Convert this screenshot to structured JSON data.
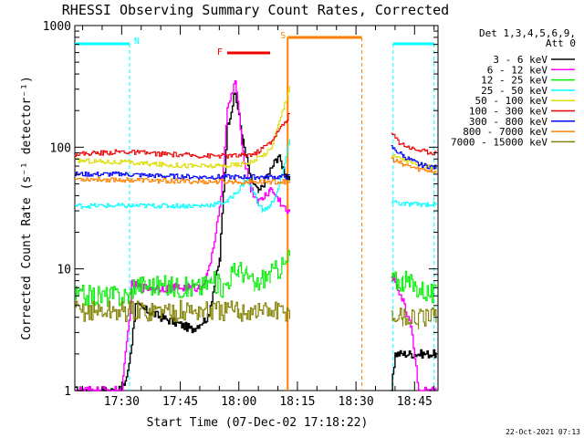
{
  "chart_data": {
    "type": "line",
    "title": "RHESSI Observing Summary Count Rates, Corrected",
    "xlabel": "Start Time (07-Dec-02 17:18:22)",
    "ylabel": "Corrected Count Rate (s⁻¹ detector⁻¹)",
    "yscale": "log",
    "ylim": [
      1,
      1000
    ],
    "xlim": [
      18.0,
      111.0
    ],
    "x_units": "minutes after 17:00",
    "yticks": [
      {
        "value": 1,
        "label": "1"
      },
      {
        "value": 10,
        "label": "10"
      },
      {
        "value": 100,
        "label": "100"
      },
      {
        "value": 1000,
        "label": "1000"
      }
    ],
    "xticks": [
      {
        "value": 30,
        "label": "17:30"
      },
      {
        "value": 45,
        "label": "17:45"
      },
      {
        "value": 60,
        "label": "18:00"
      },
      {
        "value": 75,
        "label": "18:15"
      },
      {
        "value": 90,
        "label": "18:30"
      },
      {
        "value": 105,
        "label": "18:45"
      }
    ],
    "legend": {
      "position": "right",
      "header_line1": "Det 1,3,4,5,6,9,",
      "header_line2": "Att 0",
      "entries": [
        {
          "name": "3 - 6 keV",
          "color": "#000000"
        },
        {
          "name": "6 - 12 keV",
          "color": "#ff00ff"
        },
        {
          "name": "12 - 25 keV",
          "color": "#00ee00"
        },
        {
          "name": "25 - 50 keV",
          "color": "#00ffff"
        },
        {
          "name": "50 - 100 keV",
          "color": "#dddd00"
        },
        {
          "name": "100 - 300 keV",
          "color": "#ee0000"
        },
        {
          "name": "300 - 800 keV",
          "color": "#0000ff"
        },
        {
          "name": "800 - 7000 keV",
          "color": "#ff8000"
        },
        {
          "name": "7000 - 15000 keV",
          "color": "#808000"
        }
      ]
    },
    "annotations": [
      {
        "label": "N",
        "kind": "night",
        "x_start": 18.0,
        "x_end": 32.0,
        "color": "#00ffff"
      },
      {
        "label": "",
        "kind": "night",
        "x_start": 99.5,
        "x_end": 110.0,
        "color": "#00ffff"
      },
      {
        "label": "F",
        "kind": "flare",
        "x_start": 57.0,
        "x_end": 68.0,
        "color": "#ee0000"
      },
      {
        "label": "S",
        "kind": "saa",
        "x_start": 72.5,
        "x_end": 91.5,
        "color": "#ff8000"
      }
    ],
    "data_gaps": [
      {
        "x_start": 73.0,
        "x_end": 99.0
      }
    ],
    "series": [
      {
        "name": "3 - 6 keV",
        "color": "#000000",
        "x": [
          18,
          30,
          31.5,
          32.5,
          33.5,
          40,
          48,
          52,
          55,
          57,
          59,
          61,
          63,
          65,
          68,
          70,
          72,
          73,
          98,
          99,
          100,
          110.5
        ],
        "y": [
          1,
          1,
          1.4,
          2.5,
          5,
          4,
          3.2,
          4,
          12,
          150,
          280,
          110,
          55,
          42,
          65,
          85,
          60,
          50,
          null,
          1,
          2,
          2
        ]
      },
      {
        "name": "6 - 12 keV",
        "color": "#ff00ff",
        "x": [
          18,
          30,
          31.5,
          32.5,
          35,
          47,
          50,
          52,
          55,
          57,
          59,
          61,
          63,
          65,
          68,
          70,
          72,
          73,
          98,
          99,
          100,
          104,
          106,
          108,
          110.5
        ],
        "y": [
          1,
          1,
          3,
          7.5,
          7,
          7,
          7,
          9,
          30,
          200,
          350,
          90,
          45,
          35,
          45,
          38,
          30,
          28,
          null,
          9,
          8,
          3.5,
          1,
          1,
          1
        ]
      },
      {
        "name": "12 - 25 keV",
        "color": "#00ee00",
        "x": [
          18,
          32,
          33,
          47,
          50,
          53,
          56,
          58,
          60,
          62,
          64,
          66,
          68,
          70,
          72,
          73,
          98,
          99,
          102,
          110.5
        ],
        "y": [
          6,
          6,
          7.5,
          7,
          7,
          8,
          7,
          9,
          10,
          9,
          7,
          8.5,
          9,
          10,
          11,
          13,
          null,
          8,
          8,
          6
        ]
      },
      {
        "name": "25 - 50 keV",
        "color": "#00ffff",
        "x": [
          18,
          30,
          40,
          50,
          54,
          57,
          60,
          62,
          64,
          66,
          68,
          70,
          72,
          73,
          98,
          99,
          102,
          110.5
        ],
        "y": [
          33,
          33,
          33,
          33,
          34,
          36,
          45,
          55,
          40,
          30,
          33,
          45,
          80,
          120,
          null,
          36,
          34,
          34
        ]
      },
      {
        "name": "50 - 100 keV",
        "color": "#dddd00",
        "x": [
          18,
          30,
          40,
          50,
          55,
          60,
          64,
          68,
          70,
          72,
          73,
          98,
          99,
          102,
          106,
          110.5
        ],
        "y": [
          78,
          75,
          72,
          70,
          70,
          72,
          78,
          95,
          150,
          250,
          320,
          null,
          85,
          80,
          70,
          68
        ]
      },
      {
        "name": "100 - 300 keV",
        "color": "#ee0000",
        "x": [
          18,
          25,
          30,
          40,
          50,
          55,
          60,
          64,
          68,
          70,
          72,
          73,
          98,
          99,
          101,
          104,
          108,
          110.5
        ],
        "y": [
          88,
          90,
          92,
          88,
          85,
          85,
          85,
          88,
          110,
          135,
          165,
          190,
          null,
          130,
          110,
          98,
          92,
          90
        ]
      },
      {
        "name": "300 - 800 keV",
        "color": "#0000ff",
        "x": [
          18,
          30,
          40,
          50,
          55,
          60,
          65,
          70,
          73,
          98,
          99,
          102,
          106,
          110.5
        ],
        "y": [
          60,
          60,
          58,
          57,
          57,
          57,
          57,
          57,
          57,
          null,
          100,
          85,
          72,
          68
        ]
      },
      {
        "name": "800 - 7000 keV",
        "color": "#ff8000",
        "x": [
          18,
          30,
          40,
          50,
          55,
          60,
          65,
          70,
          73,
          98,
          99,
          102,
          106,
          110.5
        ],
        "y": [
          55,
          54,
          53,
          52,
          52,
          52,
          52,
          52,
          52,
          null,
          80,
          72,
          66,
          63
        ]
      },
      {
        "name": "7000 - 15000 keV",
        "color": "#808000",
        "x": [
          18,
          30,
          40,
          50,
          60,
          70,
          73,
          98,
          99,
          102,
          106,
          110.5
        ],
        "y": [
          4.5,
          4.5,
          4.5,
          4.5,
          4.5,
          4.5,
          4.5,
          null,
          4,
          4,
          3.8,
          4
        ]
      }
    ]
  },
  "footer": {
    "timestamp": "22-Oct-2021 07:13"
  }
}
